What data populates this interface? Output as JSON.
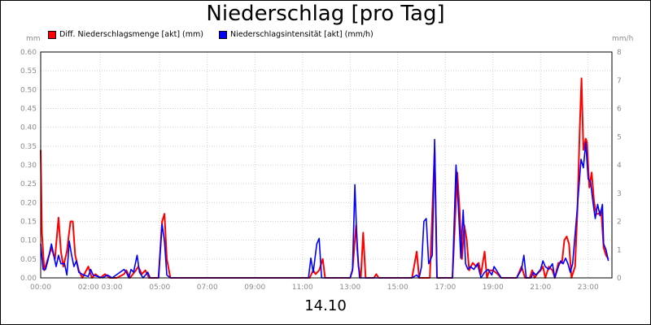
{
  "chart_data": {
    "type": "line",
    "title": "Niederschlag [pro Tag]",
    "date_label": "14.10",
    "y_left_unit": "mm",
    "y_right_unit": "mm/h",
    "y_left_ticks": [
      "0.00",
      "0.05",
      "0.10",
      "0.15",
      "0.20",
      "0.25",
      "0.30",
      "0.35",
      "0.40",
      "0.45",
      "0.50",
      "0.55",
      "0.60"
    ],
    "y_right_ticks": [
      "0",
      "1",
      "2",
      "3",
      "4",
      "5",
      "6",
      "7",
      "8"
    ],
    "x_ticks": [
      {
        "t": 0,
        "label": "00:00"
      },
      {
        "t": 2.5,
        "label": "02:00 03:00"
      },
      {
        "t": 5,
        "label": "05:00"
      },
      {
        "t": 7,
        "label": "07:00"
      },
      {
        "t": 9,
        "label": "09:00"
      },
      {
        "t": 11,
        "label": "11:00"
      },
      {
        "t": 13,
        "label": "13:00"
      },
      {
        "t": 15,
        "label": "15:00"
      },
      {
        "t": 17,
        "label": "17:00"
      },
      {
        "t": 19,
        "label": "19:00"
      },
      {
        "t": 21,
        "label": "21:00"
      },
      {
        "t": 23,
        "label": "23:00"
      }
    ],
    "xlim": [
      0,
      24
    ],
    "ylim_left": [
      0,
      0.6
    ],
    "ylim_right": [
      0,
      8
    ],
    "grid": true,
    "series": [
      {
        "name": "Diff. Niederschlagsmenge [akt] (mm)",
        "color": "#ff0000",
        "axis": "left",
        "points": [
          [
            0.0,
            0.34
          ],
          [
            0.05,
            0.12
          ],
          [
            0.15,
            0.02
          ],
          [
            0.3,
            0.05
          ],
          [
            0.45,
            0.08
          ],
          [
            0.6,
            0.05
          ],
          [
            0.75,
            0.16
          ],
          [
            0.85,
            0.07
          ],
          [
            0.95,
            0.03
          ],
          [
            1.1,
            0.07
          ],
          [
            1.25,
            0.15
          ],
          [
            1.35,
            0.15
          ],
          [
            1.45,
            0.06
          ],
          [
            1.6,
            0.02
          ],
          [
            1.75,
            0.0
          ],
          [
            2.0,
            0.03
          ],
          [
            2.15,
            0.0
          ],
          [
            2.3,
            0.01
          ],
          [
            2.5,
            0.0
          ],
          [
            2.7,
            0.01
          ],
          [
            2.9,
            0.0
          ],
          [
            3.2,
            0.0
          ],
          [
            3.5,
            0.01
          ],
          [
            3.6,
            0.02
          ],
          [
            3.75,
            0.0
          ],
          [
            4.0,
            0.02
          ],
          [
            4.1,
            0.03
          ],
          [
            4.25,
            0.01
          ],
          [
            4.4,
            0.02
          ],
          [
            4.55,
            0.0
          ],
          [
            4.95,
            0.0
          ],
          [
            5.1,
            0.15
          ],
          [
            5.2,
            0.17
          ],
          [
            5.3,
            0.05
          ],
          [
            5.45,
            0.0
          ],
          [
            11.0,
            0.0
          ],
          [
            11.3,
            0.0
          ],
          [
            11.45,
            0.02
          ],
          [
            11.55,
            0.01
          ],
          [
            11.7,
            0.02
          ],
          [
            11.85,
            0.05
          ],
          [
            11.95,
            0.0
          ],
          [
            13.0,
            0.0
          ],
          [
            13.1,
            0.02
          ],
          [
            13.25,
            0.14
          ],
          [
            13.35,
            0.03
          ],
          [
            13.45,
            0.0
          ],
          [
            13.55,
            0.12
          ],
          [
            13.65,
            0.0
          ],
          [
            14.0,
            0.0
          ],
          [
            14.1,
            0.01
          ],
          [
            14.2,
            0.0
          ],
          [
            15.6,
            0.0
          ],
          [
            15.8,
            0.07
          ],
          [
            15.9,
            0.0
          ],
          [
            16.1,
            0.0
          ],
          [
            16.35,
            0.0
          ],
          [
            16.55,
            0.34
          ],
          [
            16.65,
            0.0
          ],
          [
            17.3,
            0.0
          ],
          [
            17.5,
            0.28
          ],
          [
            17.6,
            0.18
          ],
          [
            17.7,
            0.05
          ],
          [
            17.8,
            0.14
          ],
          [
            17.9,
            0.1
          ],
          [
            18.0,
            0.02
          ],
          [
            18.15,
            0.04
          ],
          [
            18.3,
            0.03
          ],
          [
            18.4,
            0.04
          ],
          [
            18.5,
            0.01
          ],
          [
            18.65,
            0.07
          ],
          [
            18.75,
            0.0
          ],
          [
            18.85,
            0.02
          ],
          [
            19.0,
            0.02
          ],
          [
            19.2,
            0.01
          ],
          [
            19.35,
            0.0
          ],
          [
            20.0,
            0.0
          ],
          [
            20.2,
            0.03
          ],
          [
            20.35,
            0.0
          ],
          [
            20.55,
            0.0
          ],
          [
            20.65,
            0.02
          ],
          [
            20.75,
            0.0
          ],
          [
            20.85,
            0.01
          ],
          [
            21.0,
            0.02
          ],
          [
            21.1,
            0.03
          ],
          [
            21.2,
            0.0
          ],
          [
            21.35,
            0.03
          ],
          [
            21.5,
            0.02
          ],
          [
            21.6,
            0.0
          ],
          [
            21.75,
            0.04
          ],
          [
            21.9,
            0.04
          ],
          [
            22.0,
            0.1
          ],
          [
            22.1,
            0.11
          ],
          [
            22.2,
            0.09
          ],
          [
            22.3,
            0.0
          ],
          [
            22.45,
            0.03
          ],
          [
            22.55,
            0.18
          ],
          [
            22.65,
            0.4
          ],
          [
            22.72,
            0.53
          ],
          [
            22.8,
            0.34
          ],
          [
            22.9,
            0.37
          ],
          [
            22.95,
            0.36
          ],
          [
            23.05,
            0.24
          ],
          [
            23.15,
            0.28
          ],
          [
            23.25,
            0.2
          ],
          [
            23.35,
            0.17
          ],
          [
            23.45,
            0.17
          ],
          [
            23.55,
            0.18
          ],
          [
            23.65,
            0.08
          ],
          [
            23.75,
            0.06
          ],
          [
            23.85,
            0.05
          ]
        ]
      },
      {
        "name": "Niederschlagsintensität [akt] (mm/h)",
        "color": "#0000ff",
        "axis": "right",
        "points": [
          [
            0.0,
            1.2
          ],
          [
            0.1,
            0.3
          ],
          [
            0.2,
            0.3
          ],
          [
            0.3,
            0.6
          ],
          [
            0.45,
            1.2
          ],
          [
            0.55,
            0.8
          ],
          [
            0.65,
            0.4
          ],
          [
            0.75,
            0.8
          ],
          [
            0.85,
            0.5
          ],
          [
            1.0,
            0.5
          ],
          [
            1.1,
            0.1
          ],
          [
            1.2,
            1.3
          ],
          [
            1.3,
            0.8
          ],
          [
            1.4,
            0.4
          ],
          [
            1.5,
            0.6
          ],
          [
            1.6,
            0.2
          ],
          [
            1.8,
            0.1
          ],
          [
            2.0,
            0.05
          ],
          [
            2.1,
            0.3
          ],
          [
            2.2,
            0.1
          ],
          [
            2.4,
            0.05
          ],
          [
            2.6,
            0.0
          ],
          [
            2.8,
            0.1
          ],
          [
            3.0,
            0.0
          ],
          [
            3.5,
            0.3
          ],
          [
            3.6,
            0.2
          ],
          [
            3.7,
            0.0
          ],
          [
            3.8,
            0.3
          ],
          [
            3.9,
            0.2
          ],
          [
            4.05,
            0.8
          ],
          [
            4.15,
            0.2
          ],
          [
            4.3,
            0.0
          ],
          [
            4.5,
            0.2
          ],
          [
            4.6,
            0.0
          ],
          [
            4.95,
            0.0
          ],
          [
            5.1,
            1.9
          ],
          [
            5.2,
            1.3
          ],
          [
            5.3,
            0.1
          ],
          [
            5.45,
            0.0
          ],
          [
            11.0,
            0.0
          ],
          [
            11.25,
            0.0
          ],
          [
            11.35,
            0.7
          ],
          [
            11.45,
            0.2
          ],
          [
            11.6,
            1.2
          ],
          [
            11.7,
            1.4
          ],
          [
            11.8,
            0.0
          ],
          [
            13.0,
            0.0
          ],
          [
            13.1,
            0.3
          ],
          [
            13.2,
            3.3
          ],
          [
            13.3,
            1.0
          ],
          [
            13.4,
            0.0
          ],
          [
            14.0,
            0.0
          ],
          [
            15.6,
            0.0
          ],
          [
            15.8,
            0.1
          ],
          [
            15.9,
            0.0
          ],
          [
            16.0,
            0.4
          ],
          [
            16.1,
            2.0
          ],
          [
            16.2,
            2.1
          ],
          [
            16.3,
            0.5
          ],
          [
            16.45,
            0.8
          ],
          [
            16.55,
            4.9
          ],
          [
            16.65,
            0.0
          ],
          [
            17.3,
            0.0
          ],
          [
            17.45,
            4.0
          ],
          [
            17.55,
            2.5
          ],
          [
            17.65,
            0.7
          ],
          [
            17.75,
            2.4
          ],
          [
            17.85,
            0.5
          ],
          [
            17.95,
            0.3
          ],
          [
            18.05,
            0.4
          ],
          [
            18.2,
            0.3
          ],
          [
            18.35,
            0.5
          ],
          [
            18.5,
            0.0
          ],
          [
            18.65,
            0.2
          ],
          [
            18.8,
            0.3
          ],
          [
            18.95,
            0.1
          ],
          [
            19.05,
            0.4
          ],
          [
            19.2,
            0.2
          ],
          [
            19.35,
            0.0
          ],
          [
            20.0,
            0.0
          ],
          [
            20.2,
            0.3
          ],
          [
            20.3,
            0.8
          ],
          [
            20.4,
            0.0
          ],
          [
            20.6,
            0.0
          ],
          [
            20.7,
            0.2
          ],
          [
            20.8,
            0.1
          ],
          [
            20.9,
            0.2
          ],
          [
            21.0,
            0.3
          ],
          [
            21.1,
            0.6
          ],
          [
            21.2,
            0.4
          ],
          [
            21.35,
            0.3
          ],
          [
            21.5,
            0.5
          ],
          [
            21.6,
            0.0
          ],
          [
            21.75,
            0.4
          ],
          [
            21.85,
            0.6
          ],
          [
            21.95,
            0.5
          ],
          [
            22.05,
            0.7
          ],
          [
            22.15,
            0.5
          ],
          [
            22.25,
            0.2
          ],
          [
            22.35,
            0.5
          ],
          [
            22.5,
            2.0
          ],
          [
            22.6,
            3.1
          ],
          [
            22.7,
            4.2
          ],
          [
            22.8,
            3.9
          ],
          [
            22.9,
            4.8
          ],
          [
            23.0,
            3.5
          ],
          [
            23.1,
            3.4
          ],
          [
            23.2,
            2.7
          ],
          [
            23.3,
            2.1
          ],
          [
            23.4,
            2.6
          ],
          [
            23.5,
            2.2
          ],
          [
            23.6,
            2.6
          ],
          [
            23.65,
            1.2
          ],
          [
            23.75,
            1.0
          ],
          [
            23.85,
            0.6
          ]
        ]
      }
    ]
  }
}
